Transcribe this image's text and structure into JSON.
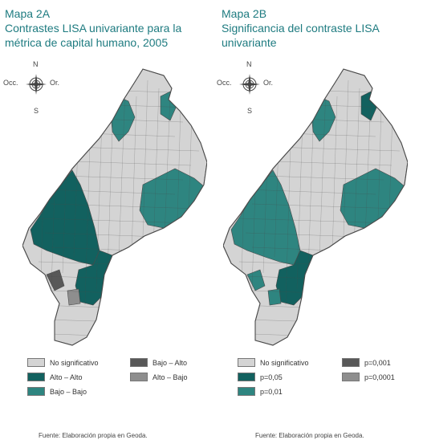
{
  "colors": {
    "not_significant": "#d4d4d4",
    "teal_dark": "#12615f",
    "teal_mid": "#2e8580",
    "dark_gray": "#585858",
    "mid_gray": "#8e8e8e",
    "border": "#4a4a4a",
    "title": "#1e7b80"
  },
  "compass": {
    "north": "N",
    "south": "S",
    "west": "Occ.",
    "east": "Or."
  },
  "map_a": {
    "label": "Mapa 2A",
    "title": "Contrastes LISA univariante para la métrica de capital humano, 2005",
    "legend": [
      {
        "label": "No significativo",
        "color": "#d4d4d4"
      },
      {
        "label": "Alto – Alto",
        "color": "#12615f"
      },
      {
        "label": "Bajo – Bajo",
        "color": "#2e8580"
      },
      {
        "label": "Bajo – Alto",
        "color": "#585858"
      },
      {
        "label": "Alto – Bajo",
        "color": "#8e8e8e"
      }
    ],
    "source": "Fuente: Elaboración propia en Geoda."
  },
  "map_b": {
    "label": "Mapa 2B",
    "title": "Significancia del contraste LISA univariante",
    "legend": [
      {
        "label": "No significativo",
        "color": "#d4d4d4"
      },
      {
        "label": "p=0,05",
        "color": "#12615f"
      },
      {
        "label": "p=0,01",
        "color": "#2e8580"
      },
      {
        "label": "p=0,001",
        "color": "#585858"
      },
      {
        "label": "p=0,0001",
        "color": "#8e8e8e"
      }
    ],
    "source": "Fuente: Elaboración propia en Geoda."
  }
}
